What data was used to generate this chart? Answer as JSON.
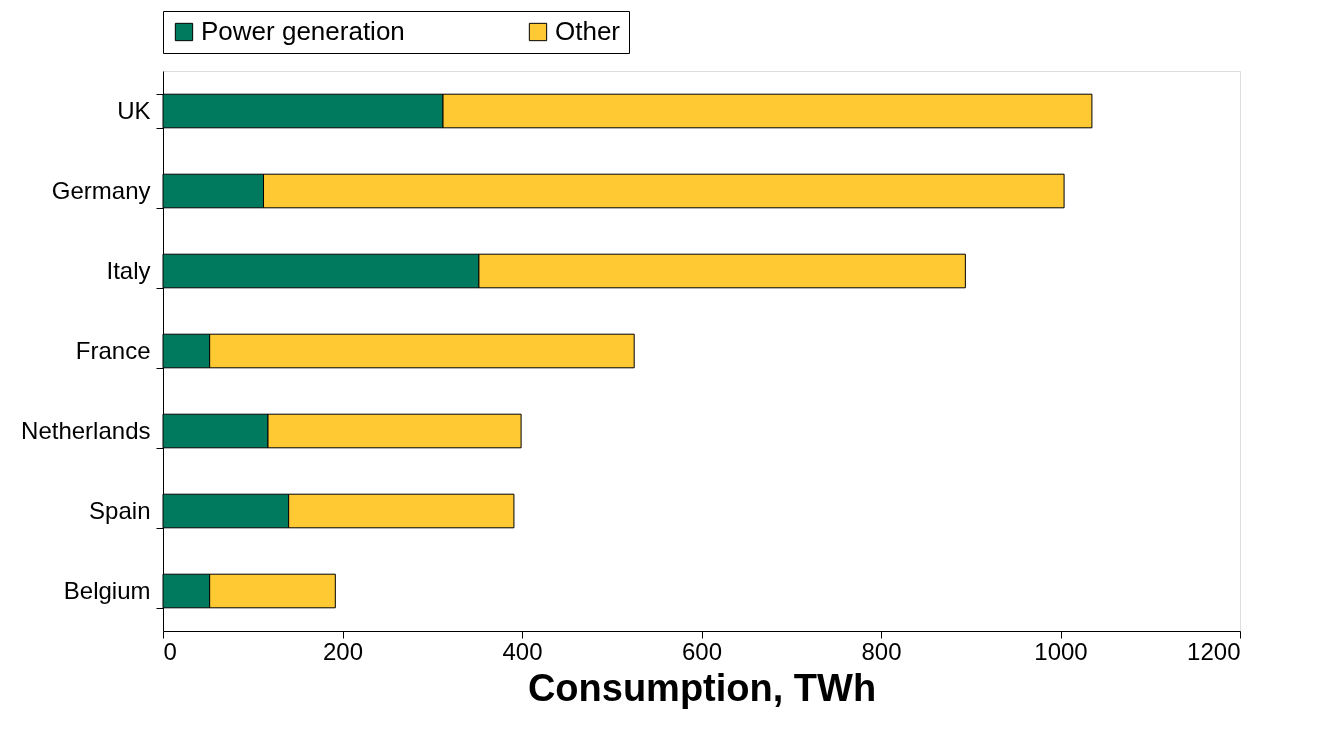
{
  "chart_data": {
    "type": "bar",
    "orientation": "horizontal",
    "stacked": true,
    "categories": [
      "UK",
      "Germany",
      "Italy",
      "France",
      "Netherlands",
      "Spain",
      "Belgium"
    ],
    "series": [
      {
        "name": "Power generation",
        "color": "#007a5e",
        "values": [
          312,
          112,
          352,
          52,
          117,
          140,
          52
        ]
      },
      {
        "name": "Other",
        "color": "#ffc933",
        "values": [
          723,
          892,
          542,
          473,
          282,
          251,
          140
        ]
      }
    ],
    "xlabel": "Consumption, TWh",
    "xlim": [
      0,
      1200
    ],
    "xticks": [
      0,
      200,
      400,
      600,
      800,
      {
        "value": 1000,
        "label": "1000"
      },
      {
        "value": 1200,
        "label": "1200"
      }
    ],
    "legend": "top",
    "grid": false
  }
}
